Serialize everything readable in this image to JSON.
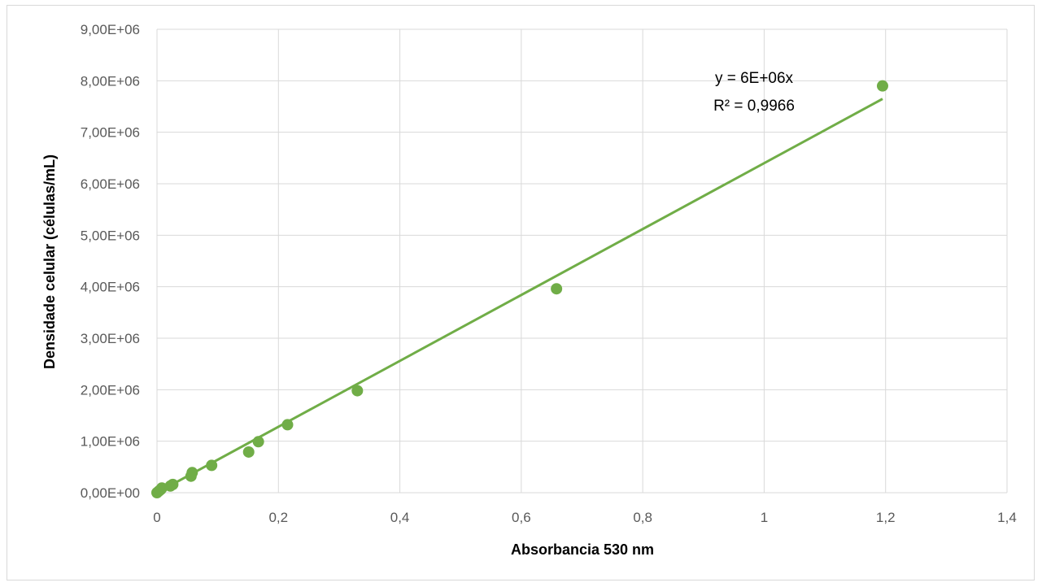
{
  "chart_data": {
    "type": "scatter",
    "xlabel": "Absorbancia 530 nm",
    "ylabel": "Densidade celular (células/mL)",
    "xlim": [
      0,
      1.4
    ],
    "ylim": [
      0,
      9000000
    ],
    "x_ticks": [
      0,
      0.2,
      0.4,
      0.6,
      0.8,
      1,
      1.2,
      1.4
    ],
    "x_tick_labels": [
      "0",
      "0,2",
      "0,4",
      "0,6",
      "0,8",
      "1",
      "1,2",
      "1,4"
    ],
    "y_ticks": [
      0,
      1000000,
      2000000,
      3000000,
      4000000,
      5000000,
      6000000,
      7000000,
      8000000,
      9000000
    ],
    "y_tick_labels": [
      "0,00E+00",
      "1,00E+06",
      "2,00E+06",
      "3,00E+06",
      "4,00E+06",
      "5,00E+06",
      "6,00E+06",
      "7,00E+06",
      "8,00E+06",
      "9,00E+06"
    ],
    "grid": true,
    "legend": "none",
    "series": [
      {
        "color": "#70ad47",
        "points": [
          {
            "x": 0.0,
            "y": 0
          },
          {
            "x": 0.003,
            "y": 30000
          },
          {
            "x": 0.006,
            "y": 60000
          },
          {
            "x": 0.008,
            "y": 90000
          },
          {
            "x": 0.022,
            "y": 130000
          },
          {
            "x": 0.026,
            "y": 160000
          },
          {
            "x": 0.056,
            "y": 320000
          },
          {
            "x": 0.058,
            "y": 390000
          },
          {
            "x": 0.09,
            "y": 530000
          },
          {
            "x": 0.151,
            "y": 790000
          },
          {
            "x": 0.167,
            "y": 990000
          },
          {
            "x": 0.215,
            "y": 1320000
          },
          {
            "x": 0.33,
            "y": 1980000
          },
          {
            "x": 0.658,
            "y": 3960000
          },
          {
            "x": 1.195,
            "y": 7900000
          }
        ]
      }
    ],
    "trendline": {
      "type": "linear",
      "slope": 6400000,
      "intercept": 0,
      "x_range": [
        0,
        1.195
      ],
      "color": "#70ad47",
      "equation": "y = 6E+06x",
      "r_squared": "R² = 0,9966"
    }
  }
}
